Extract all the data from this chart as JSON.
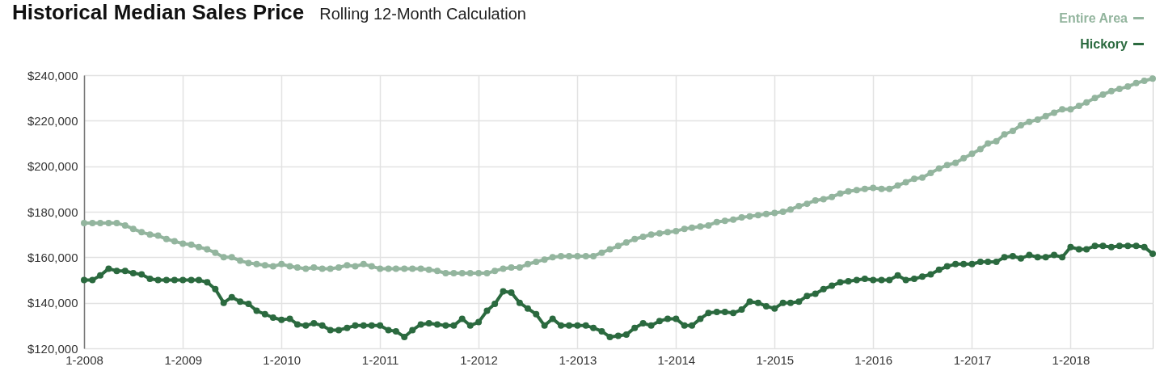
{
  "chart_data": {
    "type": "line",
    "title": "Historical Median Sales Price",
    "subtitle": "Rolling 12-Month Calculation",
    "x": [
      "2008-01",
      "2008-02",
      "2008-03",
      "2008-04",
      "2008-05",
      "2008-06",
      "2008-07",
      "2008-08",
      "2008-09",
      "2008-10",
      "2008-11",
      "2008-12",
      "2009-01",
      "2009-02",
      "2009-03",
      "2009-04",
      "2009-05",
      "2009-06",
      "2009-07",
      "2009-08",
      "2009-09",
      "2009-10",
      "2009-11",
      "2009-12",
      "2010-01",
      "2010-02",
      "2010-03",
      "2010-04",
      "2010-05",
      "2010-06",
      "2010-07",
      "2010-08",
      "2010-09",
      "2010-10",
      "2010-11",
      "2010-12",
      "2011-01",
      "2011-02",
      "2011-03",
      "2011-04",
      "2011-05",
      "2011-06",
      "2011-07",
      "2011-08",
      "2011-09",
      "2011-10",
      "2011-11",
      "2011-12",
      "2012-01",
      "2012-02",
      "2012-03",
      "2012-04",
      "2012-05",
      "2012-06",
      "2012-07",
      "2012-08",
      "2012-09",
      "2012-10",
      "2012-11",
      "2012-12",
      "2013-01",
      "2013-02",
      "2013-03",
      "2013-04",
      "2013-05",
      "2013-06",
      "2013-07",
      "2013-08",
      "2013-09",
      "2013-10",
      "2013-11",
      "2013-12",
      "2014-01",
      "2014-02",
      "2014-03",
      "2014-04",
      "2014-05",
      "2014-06",
      "2014-07",
      "2014-08",
      "2014-09",
      "2014-10",
      "2014-11",
      "2014-12",
      "2015-01",
      "2015-02",
      "2015-03",
      "2015-04",
      "2015-05",
      "2015-06",
      "2015-07",
      "2015-08",
      "2015-09",
      "2015-10",
      "2015-11",
      "2015-12",
      "2016-01",
      "2016-02",
      "2016-03",
      "2016-04",
      "2016-05",
      "2016-06",
      "2016-07",
      "2016-08",
      "2016-09",
      "2016-10",
      "2016-11",
      "2016-12",
      "2017-01",
      "2017-02",
      "2017-03",
      "2017-04",
      "2017-05",
      "2017-06",
      "2017-07",
      "2017-08",
      "2017-09",
      "2017-10",
      "2017-11",
      "2017-12",
      "2018-01",
      "2018-02",
      "2018-03",
      "2018-04",
      "2018-05",
      "2018-06",
      "2018-07",
      "2018-08",
      "2018-09",
      "2018-10",
      "2018-11"
    ],
    "series": [
      {
        "name": "Entire Area",
        "color": "#93b59e",
        "values": [
          175000,
          175000,
          175000,
          175000,
          175000,
          174000,
          172500,
          171000,
          170000,
          169500,
          168000,
          167000,
          166000,
          165500,
          164500,
          163500,
          162000,
          160000,
          160000,
          158500,
          157500,
          157000,
          156500,
          156000,
          157000,
          156000,
          155500,
          155000,
          155500,
          155000,
          155000,
          155500,
          156500,
          156000,
          157000,
          156000,
          155000,
          155000,
          155000,
          155000,
          155000,
          155000,
          154500,
          154000,
          153000,
          153000,
          153000,
          153000,
          153000,
          153000,
          154000,
          155000,
          155500,
          155500,
          157000,
          158000,
          159000,
          160000,
          160500,
          160500,
          160500,
          160500,
          160500,
          162000,
          163500,
          165000,
          166500,
          168000,
          169000,
          170000,
          170500,
          171000,
          171500,
          172500,
          173000,
          173500,
          174000,
          175500,
          176000,
          176500,
          177500,
          178000,
          178500,
          179000,
          179500,
          180000,
          181000,
          182500,
          183500,
          185000,
          185500,
          186500,
          188000,
          189000,
          189500,
          190000,
          190500,
          190000,
          190000,
          191500,
          193000,
          194500,
          195000,
          197000,
          199000,
          200500,
          201500,
          203500,
          205500,
          207500,
          210000,
          211000,
          214000,
          215500,
          218000,
          219500,
          220500,
          222000,
          223500,
          225000,
          225000,
          226500,
          228000,
          230000,
          231500,
          233000,
          234000,
          235000,
          236500,
          237500,
          238500
        ]
      },
      {
        "name": "Hickory",
        "color": "#2b6a3f",
        "values": [
          150000,
          150000,
          152000,
          155000,
          154000,
          154000,
          153000,
          152500,
          150500,
          150000,
          150000,
          150000,
          150000,
          150000,
          150000,
          149000,
          146000,
          140000,
          142500,
          140500,
          139500,
          136500,
          135000,
          133500,
          132500,
          133000,
          130500,
          130000,
          131000,
          130000,
          128000,
          128000,
          129000,
          130000,
          130000,
          130000,
          130000,
          128000,
          127500,
          125000,
          128000,
          130500,
          131000,
          130500,
          130000,
          130000,
          133000,
          130000,
          131500,
          136500,
          139500,
          145000,
          144500,
          140000,
          137500,
          135000,
          130000,
          133000,
          130000,
          130000,
          130000,
          130000,
          129000,
          127500,
          125000,
          125500,
          126000,
          129000,
          131000,
          130000,
          132000,
          133000,
          133000,
          130000,
          130000,
          133000,
          135500,
          136000,
          136000,
          135500,
          137000,
          140500,
          140000,
          138500,
          137500,
          140000,
          140000,
          140500,
          143000,
          144000,
          146000,
          147500,
          149000,
          149500,
          150000,
          150500,
          150000,
          150000,
          150000,
          152000,
          150000,
          150500,
          151500,
          152500,
          154500,
          156000,
          157000,
          157000,
          157000,
          158000,
          158000,
          158000,
          160000,
          160500,
          159500,
          161000,
          160000,
          160000,
          161000,
          160000,
          164500,
          163500,
          163500,
          165000,
          165000,
          164500,
          165000,
          165000,
          165000,
          164500,
          161500
        ]
      }
    ],
    "xlim": [
      "2008-01",
      "2018-11"
    ],
    "xticks": [
      {
        "value": "2008-01",
        "label": "1-2008"
      },
      {
        "value": "2009-01",
        "label": "1-2009"
      },
      {
        "value": "2010-01",
        "label": "1-2010"
      },
      {
        "value": "2011-01",
        "label": "1-2011"
      },
      {
        "value": "2012-01",
        "label": "1-2012"
      },
      {
        "value": "2013-01",
        "label": "1-2013"
      },
      {
        "value": "2014-01",
        "label": "1-2014"
      },
      {
        "value": "2015-01",
        "label": "1-2015"
      },
      {
        "value": "2016-01",
        "label": "1-2016"
      },
      {
        "value": "2017-01",
        "label": "1-2017"
      },
      {
        "value": "2018-01",
        "label": "1-2018"
      }
    ],
    "ylim": [
      120000,
      240000
    ],
    "yticks": [
      {
        "value": 120000,
        "label": "$120,000"
      },
      {
        "value": 140000,
        "label": "$140,000"
      },
      {
        "value": 160000,
        "label": "$160,000"
      },
      {
        "value": 180000,
        "label": "$180,000"
      },
      {
        "value": 200000,
        "label": "$200,000"
      },
      {
        "value": 220000,
        "label": "$220,000"
      },
      {
        "value": 240000,
        "label": "$240,000"
      }
    ],
    "grid": true,
    "legend": "top right",
    "marker": "circle",
    "line_style": "solid"
  }
}
